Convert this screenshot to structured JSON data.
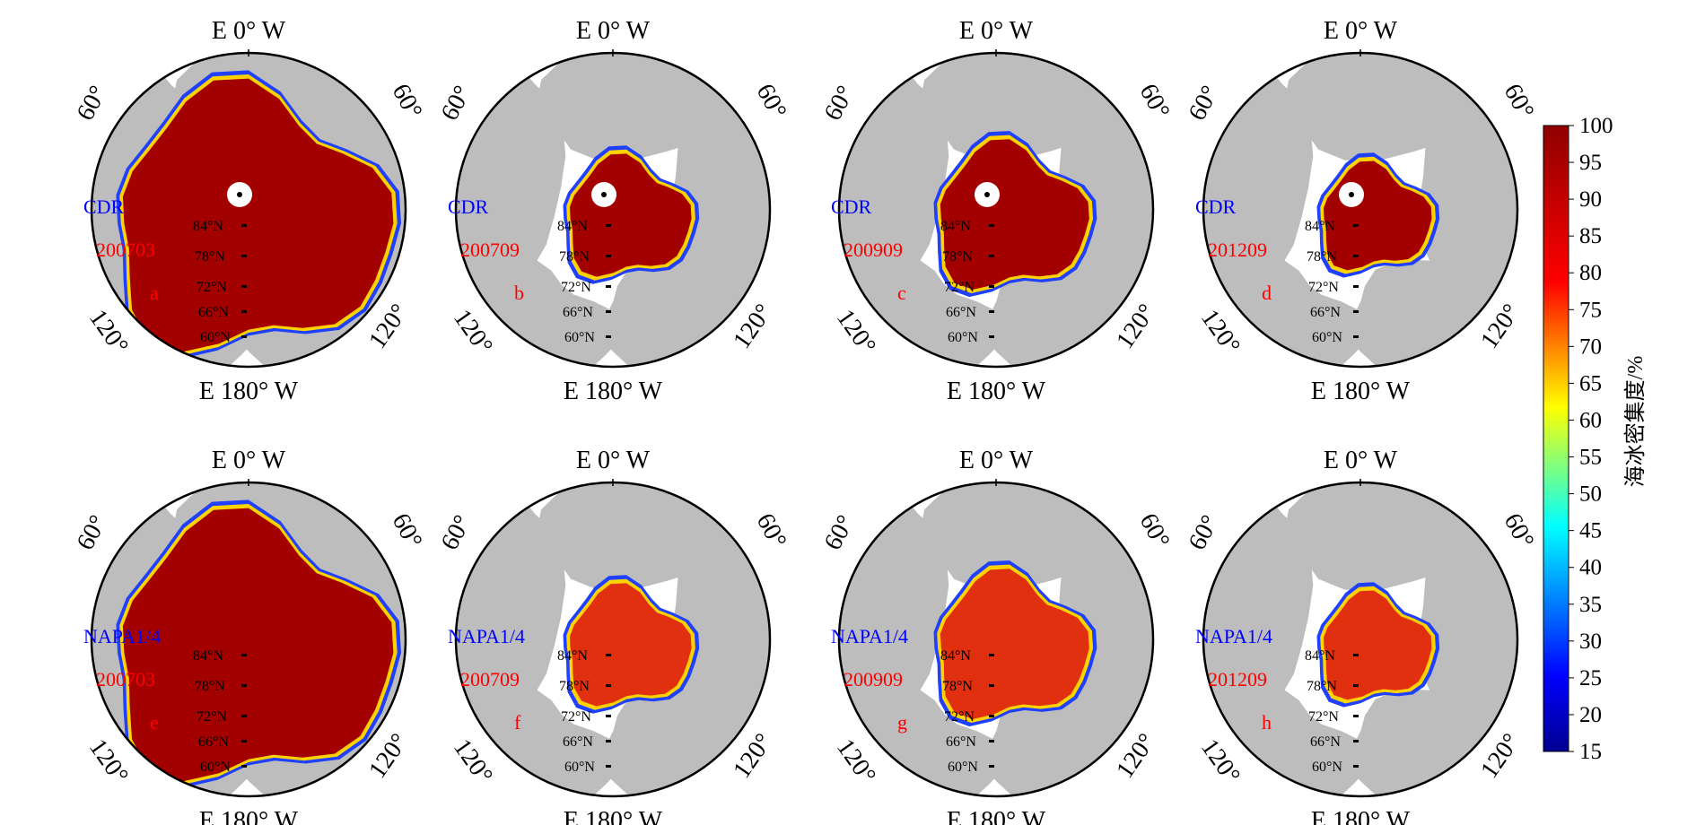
{
  "figure": {
    "colorbar": {
      "label": "海冰密集度/%",
      "ticks": [
        100,
        95,
        90,
        85,
        80,
        75,
        70,
        65,
        60,
        55,
        50,
        45,
        40,
        35,
        30,
        25,
        20,
        15
      ],
      "range": [
        15,
        100
      ]
    },
    "map_labels": {
      "top_meridian": "E 0° W",
      "bottom_meridian": "E 180° W",
      "lon_left_60": "60°",
      "lon_right_60": "60°",
      "lon_left_120": "120°",
      "lon_right_120": "120°",
      "latitudes": [
        "84°N",
        "78°N",
        "72°N",
        "66°N",
        "60°N"
      ]
    },
    "colors": {
      "land": "#bdbdbd",
      "ocean": "#ffffff",
      "source_label": "#0000ff",
      "date_label": "#ff0000",
      "outline": "#000000"
    },
    "panels": [
      {
        "letter": "a",
        "source": "CDR",
        "date": "200703",
        "ice_extent": "high",
        "ice_core": "dark-red",
        "pole_hole": true
      },
      {
        "letter": "b",
        "source": "CDR",
        "date": "200709",
        "ice_extent": "low",
        "ice_core": "dark-red",
        "pole_hole": true
      },
      {
        "letter": "c",
        "source": "CDR",
        "date": "200909",
        "ice_extent": "medium",
        "ice_core": "dark-red",
        "pole_hole": true
      },
      {
        "letter": "d",
        "source": "CDR",
        "date": "201209",
        "ice_extent": "lowest",
        "ice_core": "dark-red",
        "pole_hole": true
      },
      {
        "letter": "e",
        "source": "NAPA1/4",
        "date": "200703",
        "ice_extent": "high",
        "ice_core": "dark-red",
        "pole_hole": false
      },
      {
        "letter": "f",
        "source": "NAPA1/4",
        "date": "200709",
        "ice_extent": "low",
        "ice_core": "red",
        "pole_hole": false
      },
      {
        "letter": "g",
        "source": "NAPA1/4",
        "date": "200909",
        "ice_extent": "medium",
        "ice_core": "red",
        "pole_hole": false
      },
      {
        "letter": "h",
        "source": "NAPA1/4",
        "date": "201209",
        "ice_extent": "lowest",
        "ice_core": "red",
        "pole_hole": false
      }
    ]
  }
}
